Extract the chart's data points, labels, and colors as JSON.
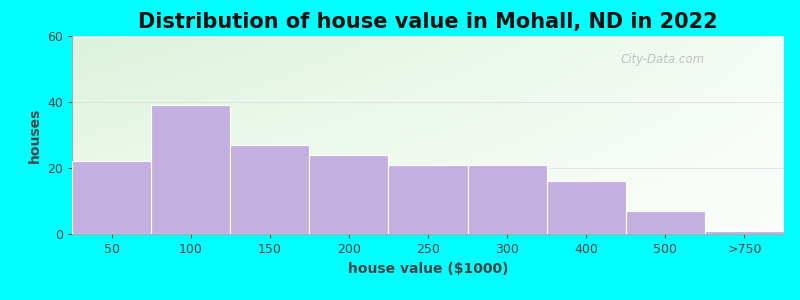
{
  "title": "Distribution of house value in Mohall, ND in 2022",
  "xlabel": "house value ($1000)",
  "ylabel": "houses",
  "categories": [
    "50",
    "100",
    "150",
    "200",
    "250",
    "300",
    "400",
    "500",
    ">750"
  ],
  "values": [
    22,
    39,
    27,
    24,
    21,
    21,
    16,
    7,
    1
  ],
  "bar_color": "#c4b0e0",
  "bar_edge_color": "#c4b0e0",
  "background_color": "#00ffff",
  "ylim": [
    0,
    60
  ],
  "yticks": [
    0,
    20,
    40,
    60
  ],
  "title_fontsize": 15,
  "axis_label_fontsize": 10,
  "tick_fontsize": 9,
  "watermark_text": "City-Data.com",
  "grad_color_topleft": "#c8eac8",
  "grad_color_bottomright": "#f0fff0",
  "grad_color_right": "#ffffff"
}
